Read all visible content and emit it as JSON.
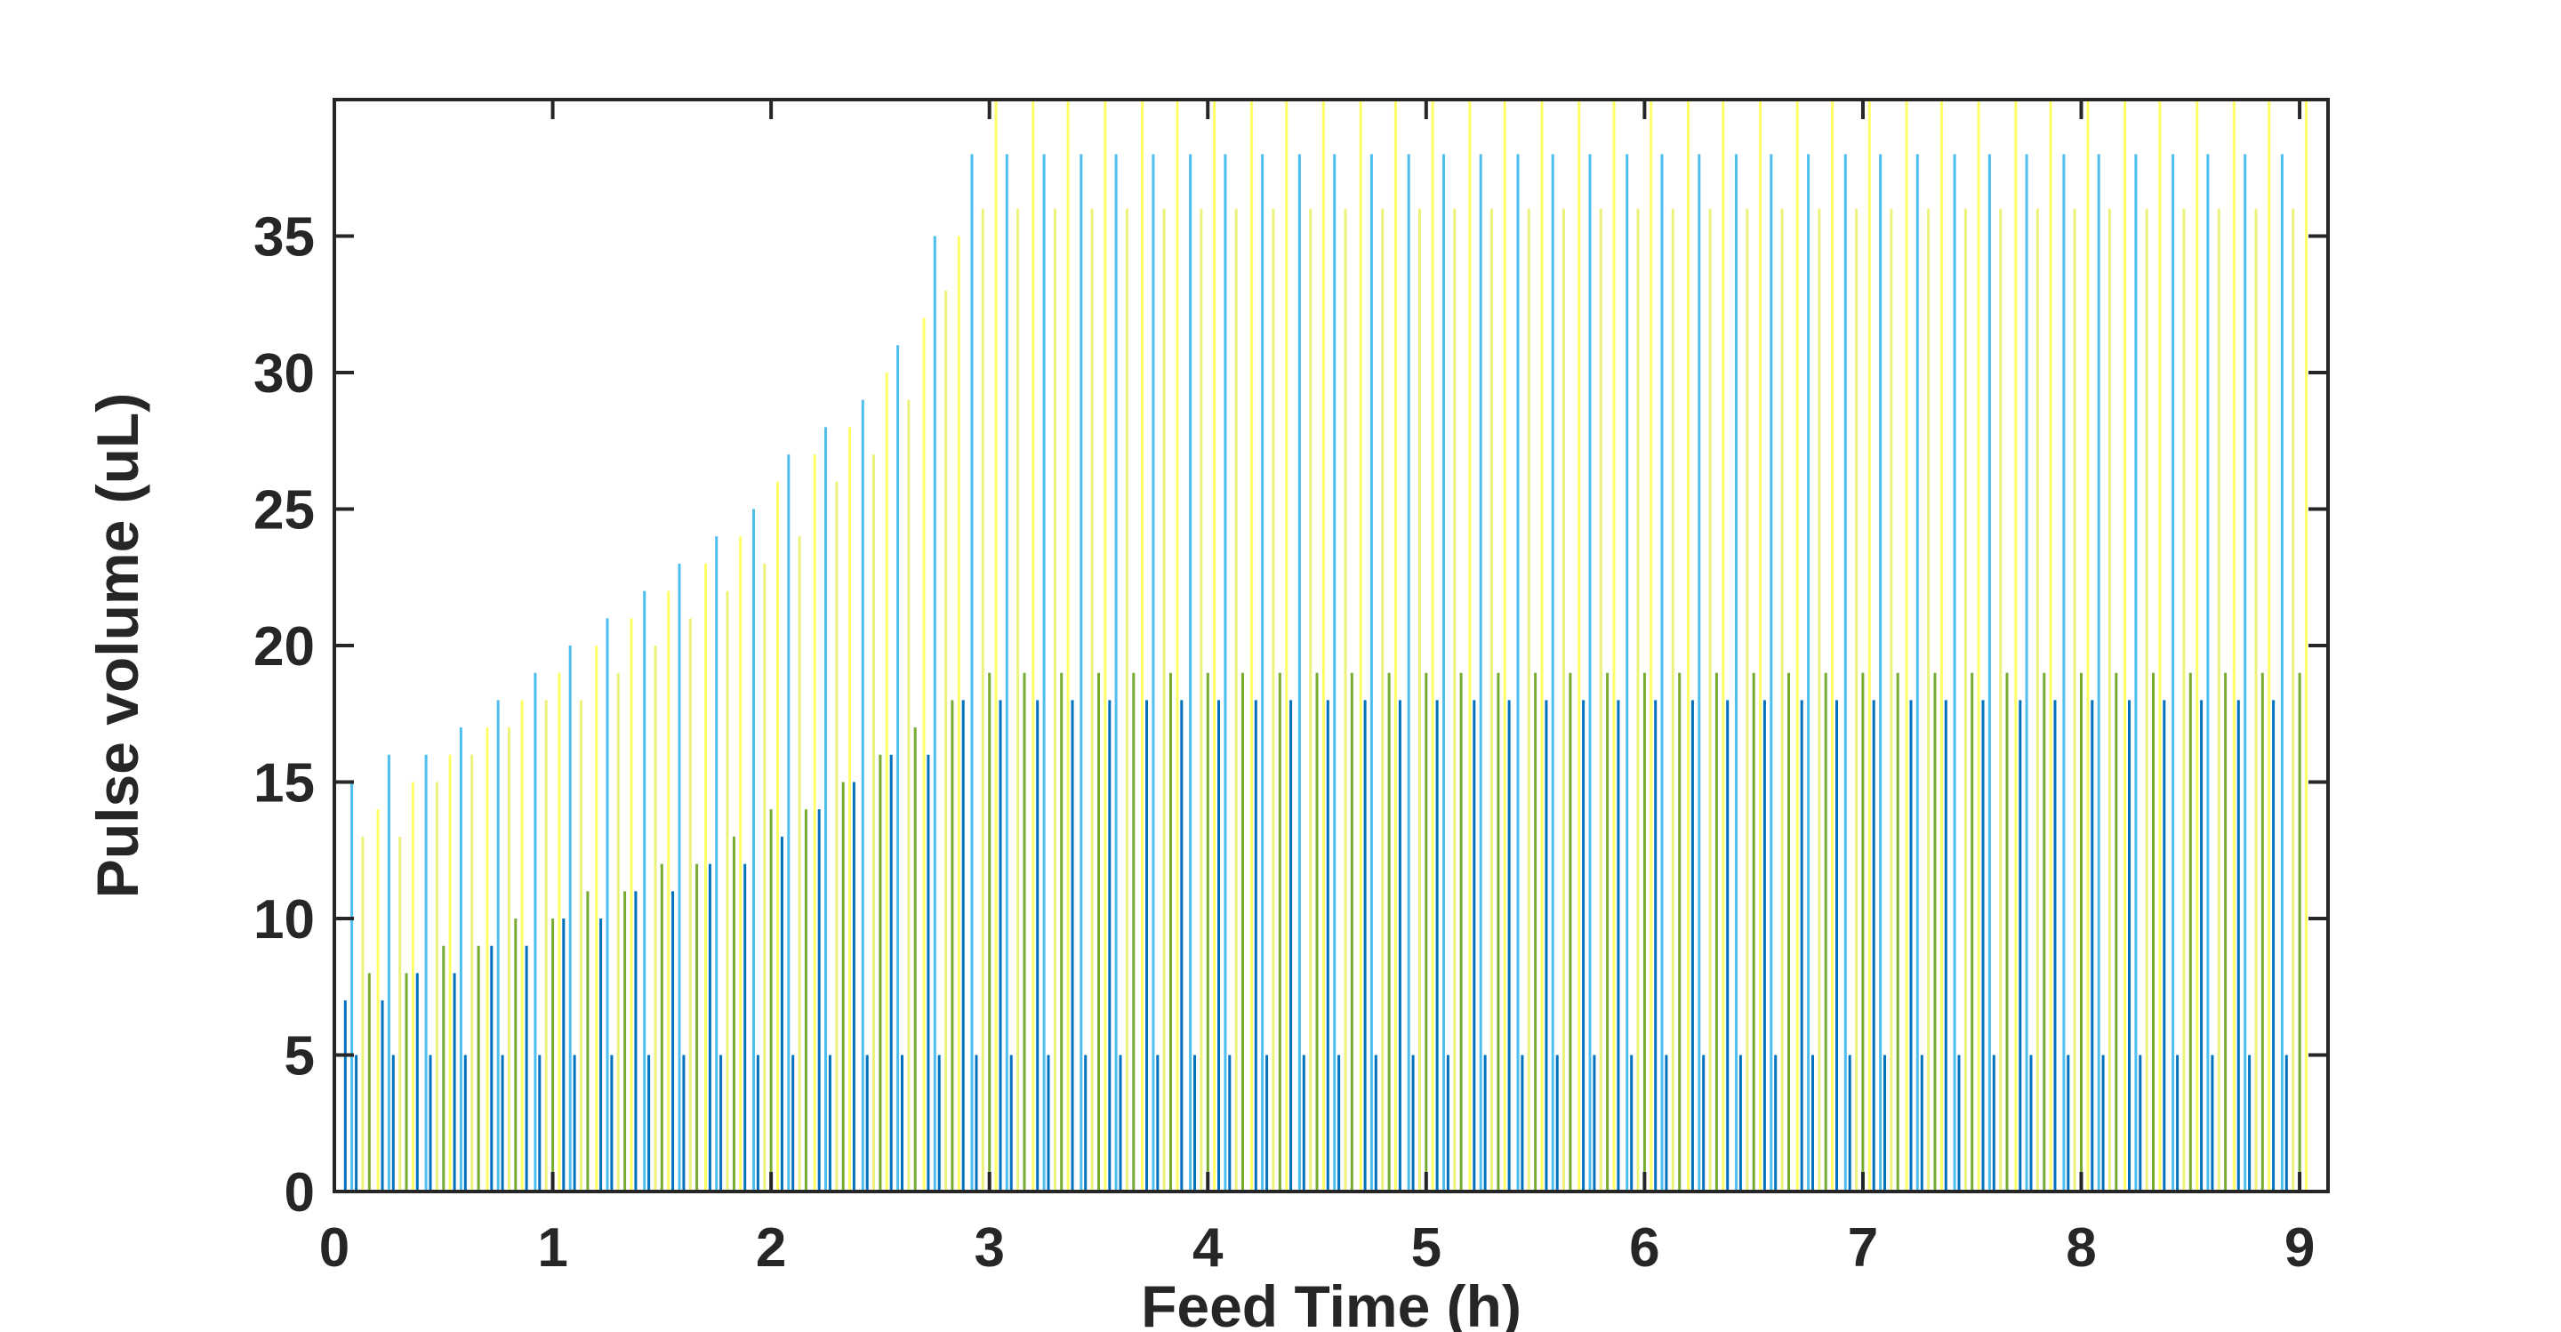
{
  "chart_data": {
    "type": "bar",
    "title": "",
    "xlabel": "Feed Time (h)",
    "ylabel": "Pulse volume (uL)",
    "xlim": [
      0,
      9.13
    ],
    "ylim": [
      0,
      40
    ],
    "xticks": [
      0,
      1,
      2,
      3,
      4,
      5,
      6,
      7,
      8,
      9
    ],
    "yticks": [
      0,
      5,
      10,
      15,
      20,
      25,
      30,
      35
    ],
    "grid": false,
    "legend": "none",
    "pulse_interval_h": 0.1667,
    "series": [
      {
        "name": "",
        "color": "#0072BD",
        "x": [
          0.05,
          0.22,
          0.38,
          0.55,
          0.72,
          0.88,
          1.05,
          1.22,
          1.38,
          1.55,
          1.72,
          1.88,
          2.05,
          2.22,
          2.38,
          2.55,
          2.72,
          2.88,
          3.05,
          3.22,
          3.38,
          3.55,
          3.72,
          3.88,
          4.05,
          4.22,
          4.38,
          4.55,
          4.72,
          4.88,
          5.05,
          5.22,
          5.38,
          5.55,
          5.72,
          5.88,
          6.05,
          6.22,
          6.38,
          6.55,
          6.72,
          6.88,
          7.05,
          7.22,
          7.38,
          7.55,
          7.72,
          7.88,
          8.05,
          8.22,
          8.38,
          8.55,
          8.72,
          8.88
        ],
        "values": [
          7,
          7,
          8,
          8,
          9,
          9,
          10,
          10,
          11,
          11,
          12,
          12,
          13,
          14,
          15,
          16,
          16,
          18,
          18,
          18,
          18,
          18,
          18,
          18,
          18,
          18,
          18,
          18,
          18,
          18,
          18,
          18,
          18,
          18,
          18,
          18,
          18,
          18,
          18,
          18,
          18,
          18,
          18,
          18,
          18,
          18,
          18,
          18,
          18,
          18,
          18,
          18,
          18,
          18
        ]
      },
      {
        "name": "",
        "color": "#4DBEEE",
        "x": [
          0.08,
          0.25,
          0.42,
          0.58,
          0.75,
          0.92,
          1.08,
          1.25,
          1.42,
          1.58,
          1.75,
          1.92,
          2.08,
          2.25,
          2.42,
          2.58,
          2.75,
          2.92,
          3.08,
          3.25,
          3.42,
          3.58,
          3.75,
          3.92,
          4.08,
          4.25,
          4.42,
          4.58,
          4.75,
          4.92,
          5.08,
          5.25,
          5.42,
          5.58,
          5.75,
          5.92,
          6.08,
          6.25,
          6.42,
          6.58,
          6.75,
          6.92,
          7.08,
          7.25,
          7.42,
          7.58,
          7.75,
          7.92,
          8.08,
          8.25,
          8.42,
          8.58,
          8.75,
          8.92
        ],
        "values": [
          15,
          16,
          16,
          17,
          18,
          19,
          20,
          21,
          22,
          23,
          24,
          25,
          27,
          28,
          29,
          31,
          35,
          38,
          38,
          38,
          38,
          38,
          38,
          38,
          38,
          38,
          38,
          38,
          38,
          38,
          38,
          38,
          38,
          38,
          38,
          38,
          38,
          38,
          38,
          38,
          38,
          38,
          38,
          38,
          38,
          38,
          38,
          38,
          38,
          38,
          38,
          38,
          38,
          38
        ]
      },
      {
        "name": "",
        "color": "#EDF27A",
        "x": [
          0.13,
          0.3,
          0.47,
          0.63,
          0.8,
          0.97,
          1.13,
          1.3,
          1.47,
          1.63,
          1.8,
          1.97,
          2.13,
          2.3,
          2.47,
          2.63,
          2.8,
          2.97,
          3.13,
          3.3,
          3.47,
          3.63,
          3.8,
          3.97,
          4.13,
          4.3,
          4.47,
          4.63,
          4.8,
          4.97,
          5.13,
          5.3,
          5.47,
          5.63,
          5.8,
          5.97,
          6.13,
          6.3,
          6.47,
          6.63,
          6.8,
          6.97,
          7.13,
          7.3,
          7.47,
          7.63,
          7.8,
          7.97,
          8.13,
          8.3,
          8.47,
          8.63,
          8.8,
          8.97
        ],
        "values": [
          13,
          13,
          15,
          16,
          17,
          18,
          18,
          19,
          20,
          21,
          22,
          23,
          24,
          26,
          27,
          29,
          33,
          36,
          36,
          36,
          36,
          36,
          36,
          36,
          36,
          36,
          36,
          36,
          36,
          36,
          36,
          36,
          36,
          36,
          36,
          36,
          36,
          36,
          36,
          36,
          36,
          36,
          36,
          36,
          36,
          36,
          36,
          36,
          36,
          36,
          36,
          36,
          36,
          36
        ]
      },
      {
        "name": "",
        "color": "#77AC30",
        "x": [
          0.16,
          0.33,
          0.5,
          0.66,
          0.83,
          1.0,
          1.16,
          1.33,
          1.5,
          1.66,
          1.83,
          2.0,
          2.16,
          2.33,
          2.5,
          2.66,
          2.83,
          3.0,
          3.16,
          3.33,
          3.5,
          3.66,
          3.83,
          4.0,
          4.16,
          4.33,
          4.5,
          4.66,
          4.83,
          5.0,
          5.16,
          5.33,
          5.5,
          5.66,
          5.83,
          6.0,
          6.16,
          6.33,
          6.5,
          6.66,
          6.83,
          7.0,
          7.16,
          7.33,
          7.5,
          7.66,
          7.83,
          8.0,
          8.16,
          8.33,
          8.5,
          8.66,
          8.83,
          9.0
        ],
        "values": [
          8,
          8,
          9,
          9,
          10,
          10,
          11,
          11,
          12,
          12,
          13,
          14,
          14,
          15,
          16,
          17,
          18,
          19,
          19,
          19,
          19,
          19,
          19,
          19,
          19,
          19,
          19,
          19,
          19,
          19,
          19,
          19,
          19,
          19,
          19,
          19,
          19,
          19,
          19,
          19,
          19,
          19,
          19,
          19,
          19,
          19,
          19,
          19,
          19,
          19,
          19,
          19,
          19,
          19
        ]
      },
      {
        "name": "",
        "color": "#FFFF66",
        "x": [
          0.2,
          0.36,
          0.53,
          0.7,
          0.86,
          1.03,
          1.2,
          1.36,
          1.53,
          1.7,
          1.86,
          2.03,
          2.2,
          2.36,
          2.53,
          2.7,
          2.86,
          3.03,
          3.2,
          3.36,
          3.53,
          3.7,
          3.86,
          4.03,
          4.2,
          4.36,
          4.53,
          4.7,
          4.86,
          5.03,
          5.2,
          5.36,
          5.53,
          5.7,
          5.86,
          6.03,
          6.2,
          6.36,
          6.53,
          6.7,
          6.86,
          7.03,
          7.2,
          7.36,
          7.53,
          7.7,
          7.86,
          8.03,
          8.2,
          8.36,
          8.53,
          8.7,
          8.86,
          9.03
        ],
        "values": [
          14,
          15,
          16,
          17,
          18,
          19,
          20,
          21,
          22,
          23,
          24,
          26,
          27,
          28,
          30,
          32,
          35,
          40,
          40,
          40,
          40,
          40,
          40,
          40,
          40,
          40,
          40,
          40,
          40,
          40,
          40,
          40,
          40,
          40,
          40,
          40,
          40,
          40,
          40,
          40,
          40,
          40,
          40,
          40,
          40,
          40,
          40,
          40,
          40,
          40,
          40,
          40,
          40,
          40
        ]
      },
      {
        "name": "",
        "color": "#0072BD",
        "x": [
          0.1,
          0.27,
          0.44,
          0.6,
          0.77,
          0.94,
          1.1,
          1.27,
          1.44,
          1.6,
          1.77,
          1.94,
          2.1,
          2.27,
          2.44,
          2.6,
          2.77,
          2.94,
          3.1,
          3.27,
          3.44,
          3.6,
          3.77,
          3.94,
          4.1,
          4.27,
          4.44,
          4.6,
          4.77,
          4.94,
          5.1,
          5.27,
          5.44,
          5.6,
          5.77,
          5.94,
          6.1,
          6.27,
          6.44,
          6.6,
          6.77,
          6.94,
          7.1,
          7.27,
          7.44,
          7.6,
          7.77,
          7.94,
          8.1,
          8.27,
          8.44,
          8.6,
          8.77,
          8.94
        ],
        "values": [
          5,
          5,
          5,
          5,
          5,
          5,
          5,
          5,
          5,
          5,
          5,
          5,
          5,
          5,
          5,
          5,
          5,
          5,
          5,
          5,
          5,
          5,
          5,
          5,
          5,
          5,
          5,
          5,
          5,
          5,
          5,
          5,
          5,
          5,
          5,
          5,
          5,
          5,
          5,
          5,
          5,
          5,
          5,
          5,
          5,
          5,
          5,
          5,
          5,
          5,
          5,
          5,
          5,
          5
        ]
      }
    ]
  }
}
